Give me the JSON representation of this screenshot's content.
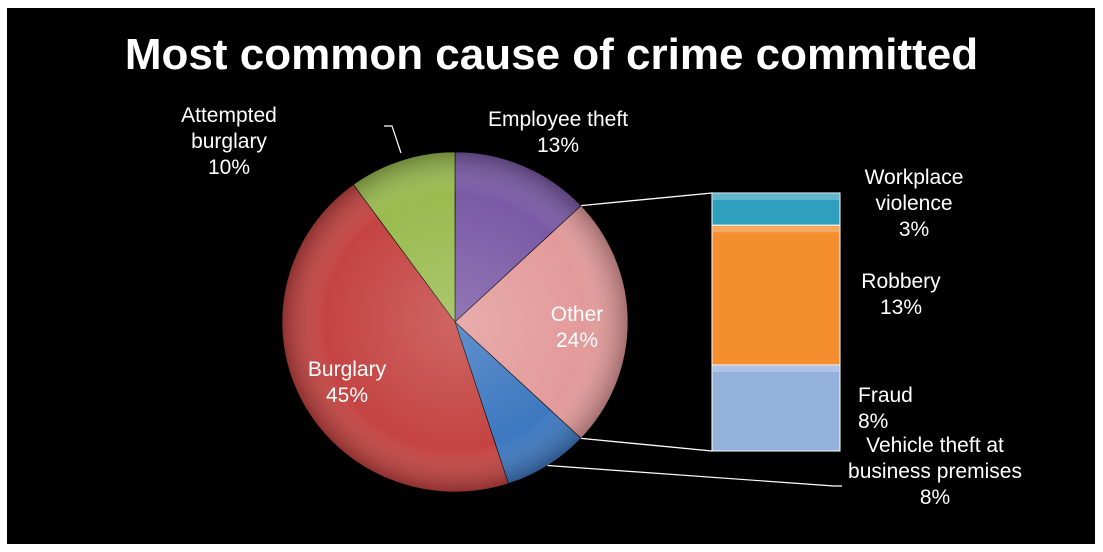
{
  "chart_data": {
    "type": "pie",
    "title": "Most common cause of crime committed",
    "slices": [
      {
        "label": "Employee theft",
        "value": 13,
        "value_label": "13%",
        "color": "#7a5aa6"
      },
      {
        "label": "Other",
        "value": 24,
        "value_label": "24%",
        "color": "#e39a9a"
      },
      {
        "label": "Vehicle theft at business premises",
        "value": 8,
        "value_label": "8%",
        "color": "#3d78c0"
      },
      {
        "label": "Burglary",
        "value": 45,
        "value_label": "45%",
        "color": "#c44442"
      },
      {
        "label": "Attempted burglary",
        "value": 10,
        "value_label": "10%",
        "color": "#99bb4f"
      }
    ],
    "breakdown": {
      "of": "Other",
      "type": "stacked-bar",
      "segments": [
        {
          "label": "Workplace violence",
          "value": 3,
          "value_label": "3%",
          "color": "#2e9fbd"
        },
        {
          "label": "Robbery",
          "value": 13,
          "value_label": "13%",
          "color": "#f58e2f"
        },
        {
          "label": "Fraud",
          "value": 8,
          "value_label": "8%",
          "color": "#94b1dc"
        }
      ]
    },
    "legend": "none"
  }
}
